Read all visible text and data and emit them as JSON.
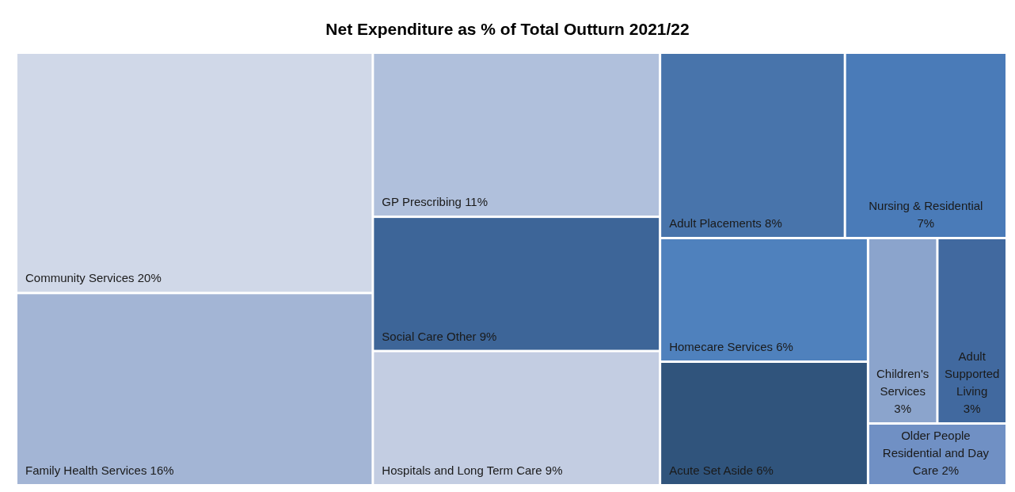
{
  "chart_data": {
    "type": "other",
    "title": "Net Expenditure as % of Total Outturn 2021/22",
    "categories": [
      "Community Services",
      "Family Health Services",
      "GP Prescribing",
      "Social Care Other",
      "Hospitals and Long Term Care",
      "Adult Placements",
      "Nursing & Residential",
      "Homecare Services",
      "Acute Set Aside",
      "Children's Services",
      "Adult Supported Living",
      "Older People Residential and Day Care"
    ],
    "values": [
      20,
      16,
      11,
      9,
      9,
      8,
      7,
      6,
      6,
      3,
      3,
      2
    ],
    "value_labels": [
      "20%",
      "16%",
      "11%",
      "9%",
      "9%",
      "8%",
      "7%",
      "6%",
      "6%",
      "3%",
      "3%",
      "2%"
    ],
    "colors": [
      "#d0d8e8",
      "#a3b5d5",
      "#b0c0dc",
      "#3d6598",
      "#c3cde2",
      "#4874ab",
      "#4a7bb8",
      "#4f81bd",
      "#30547c",
      "#8ba4cc",
      "#41699f",
      "#7090c4"
    ]
  }
}
